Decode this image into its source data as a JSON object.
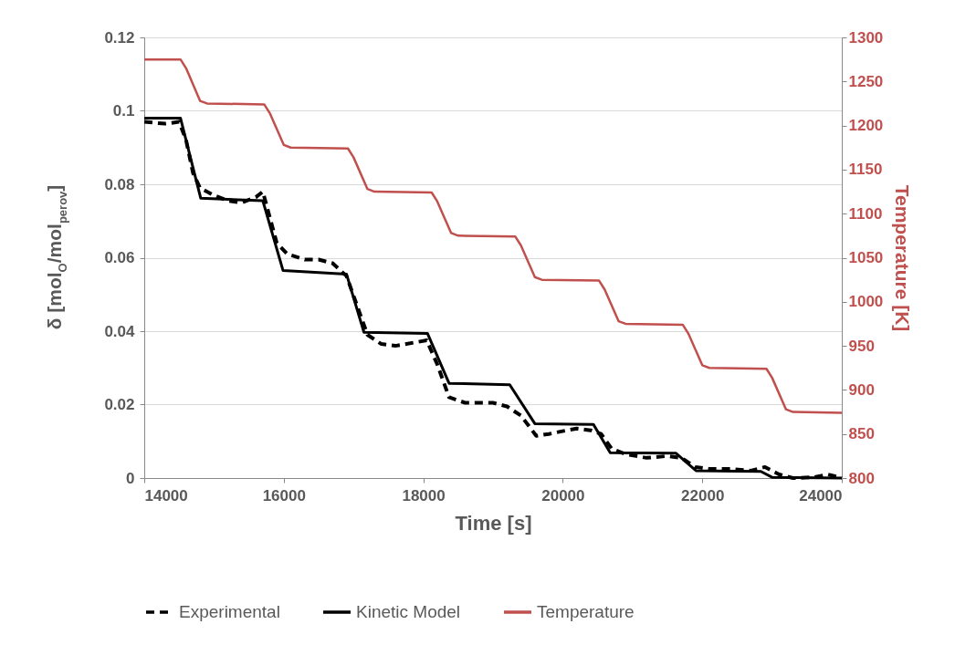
{
  "chart_data": {
    "type": "line",
    "xlabel": "Time [s]",
    "ylabel": "δ [mol$_{O}$/mol$_{perov}$]",
    "y2label": "Temperature [K]",
    "xlim": [
      14000,
      24000
    ],
    "xticks": [
      14000,
      16000,
      18000,
      20000,
      22000,
      24000
    ],
    "ylim": [
      0,
      0.12
    ],
    "yticks": [
      0,
      0.02,
      0.04,
      0.06,
      0.08,
      0.1,
      0.12
    ],
    "y2lim": [
      800,
      1300
    ],
    "y2ticks": [
      800,
      850,
      900,
      950,
      1000,
      1050,
      1100,
      1150,
      1200,
      1250,
      1300
    ],
    "grid": "y",
    "legend": "bottom",
    "series": [
      {
        "name": "Experimental",
        "color": "#000000",
        "line_style": "dashed",
        "x": [
          14000,
          14300,
          14500,
          14600,
          14700,
          14800,
          15000,
          15200,
          15400,
          15600,
          15700,
          15800,
          15900,
          16050,
          16300,
          16500,
          16700,
          16900,
          17050,
          17200,
          17400,
          17600,
          17900,
          18050,
          18200,
          18370,
          18600,
          18800,
          19000,
          19200,
          19400,
          19620,
          19800,
          19980,
          20200,
          20400,
          20550,
          20700,
          20900,
          21200,
          21500,
          21700,
          21900,
          22100,
          22400,
          22700,
          22900,
          23100,
          23300,
          23600,
          23800,
          23900,
          24000
        ],
        "values": [
          0.097,
          0.0965,
          0.097,
          0.092,
          0.083,
          0.079,
          0.077,
          0.0755,
          0.075,
          0.0765,
          0.078,
          0.071,
          0.064,
          0.061,
          0.0595,
          0.0595,
          0.0585,
          0.055,
          0.047,
          0.039,
          0.0365,
          0.036,
          0.037,
          0.0375,
          0.031,
          0.022,
          0.0205,
          0.0205,
          0.0205,
          0.0195,
          0.017,
          0.0115,
          0.012,
          0.0127,
          0.0135,
          0.013,
          0.012,
          0.008,
          0.0065,
          0.0055,
          0.006,
          0.0055,
          0.003,
          0.0025,
          0.0025,
          0.002,
          0.003,
          0.001,
          0,
          0.0002,
          0.001,
          0.0005,
          0
        ]
      },
      {
        "name": "Kinetic Model",
        "color": "#000000",
        "line_style": "solid",
        "x": [
          14000,
          14520,
          14810,
          15700,
          15990,
          16900,
          17150,
          18060,
          18370,
          19240,
          19600,
          20440,
          20680,
          21620,
          21910,
          22840,
          23000,
          24000
        ],
        "values": [
          0.098,
          0.098,
          0.0762,
          0.0755,
          0.0565,
          0.0555,
          0.0397,
          0.0394,
          0.0258,
          0.0254,
          0.0148,
          0.0146,
          0.0069,
          0.0068,
          0.002,
          0.0018,
          0.0002,
          0
        ]
      },
      {
        "name": "Temperature",
        "color": "#c0504d",
        "line_style": "solid",
        "axis": "y2",
        "x": [
          14000,
          14520,
          14600,
          14800,
          14900,
          15720,
          15800,
          16000,
          16100,
          16920,
          17000,
          17200,
          17300,
          18120,
          18200,
          18400,
          18500,
          19320,
          19400,
          19600,
          19700,
          20520,
          20600,
          20800,
          20900,
          21720,
          21800,
          22000,
          22100,
          22920,
          23000,
          23200,
          23300,
          24000
        ],
        "values": [
          1275,
          1275,
          1265,
          1228,
          1225,
          1224,
          1214,
          1178,
          1175,
          1174,
          1164,
          1128,
          1125,
          1124,
          1114,
          1078,
          1075,
          1074,
          1064,
          1028,
          1025,
          1024,
          1014,
          978,
          975,
          974,
          964,
          928,
          925,
          924,
          914,
          878,
          875,
          874
        ]
      }
    ]
  }
}
